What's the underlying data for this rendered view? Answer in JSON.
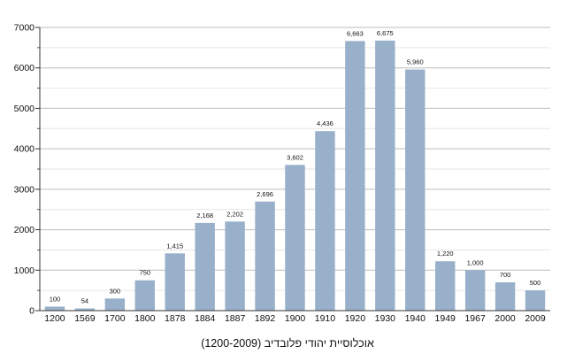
{
  "caption": "אוכלוסיית יהודי פלובדיב (1200-2009)",
  "chart_data": {
    "type": "bar",
    "title": "",
    "xlabel": "",
    "ylabel": "",
    "ylim": [
      0,
      7000
    ],
    "yticks": [
      0,
      1000,
      2000,
      3000,
      4000,
      5000,
      6000,
      7000
    ],
    "grid": true,
    "legend": "none",
    "bar_color": "#98b0c9",
    "categories": [
      "1200",
      "1569",
      "1700",
      "1800",
      "1878",
      "1884",
      "1887",
      "1892",
      "1900",
      "1910",
      "1920",
      "1930",
      "1940",
      "1949",
      "1967",
      "2000",
      "2009"
    ],
    "values": [
      100,
      54,
      300,
      750,
      1415,
      2168,
      2202,
      2696,
      3602,
      4436,
      6663,
      6675,
      5960,
      1220,
      1000,
      700,
      500
    ],
    "data_labels": [
      "100",
      "54",
      "300",
      "750",
      "1,415",
      "2,168",
      "2,202",
      "2,696",
      "3,602",
      "4,436",
      "6,663",
      "6,675",
      "5,960",
      "1,220",
      "1,000",
      "700",
      "500"
    ]
  }
}
